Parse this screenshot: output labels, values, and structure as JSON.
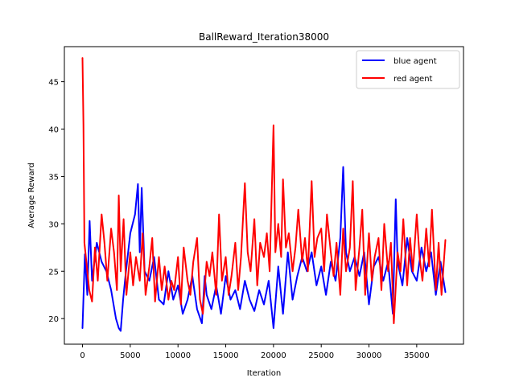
{
  "chart_data": {
    "type": "line",
    "title": "BallReward_Iteration38000",
    "xlabel": "Iteration",
    "ylabel": "Average Reward",
    "xlim": [
      -1900,
      39900
    ],
    "ylim": [
      17.3,
      48.7
    ],
    "xticks": [
      0,
      5000,
      10000,
      15000,
      20000,
      25000,
      30000,
      35000
    ],
    "yticks": [
      20,
      25,
      30,
      35,
      40,
      45
    ],
    "grid": false,
    "legend_position": "top-right",
    "series": [
      {
        "name": "blue agent",
        "color": "#0000ff",
        "x": [
          0,
          250,
          500,
          750,
          1000,
          1500,
          2000,
          2500,
          3000,
          3500,
          3800,
          4000,
          4250,
          4500,
          5000,
          5500,
          5800,
          6000,
          6200,
          6500,
          7000,
          7500,
          8000,
          8500,
          9000,
          9500,
          10000,
          10500,
          11000,
          11500,
          12000,
          12500,
          12800,
          13000,
          13500,
          14000,
          14500,
          15000,
          15500,
          16000,
          16500,
          17000,
          17500,
          18000,
          18500,
          19000,
          19500,
          20000,
          20500,
          21000,
          21500,
          22000,
          22500,
          23000,
          23500,
          24000,
          24500,
          25000,
          25500,
          26000,
          26500,
          27000,
          27300,
          27600,
          28000,
          28500,
          29000,
          29500,
          30000,
          30500,
          31000,
          31500,
          32000,
          32500,
          32800,
          33000,
          33500,
          34000,
          34500,
          35000,
          35500,
          36000,
          36500,
          37000,
          37500,
          38000
        ],
        "y": [
          19,
          26.8,
          22.5,
          30.3,
          24,
          28,
          26,
          25,
          23,
          20,
          19,
          18.7,
          22,
          24.5,
          29,
          31,
          34.2,
          27,
          33.8,
          25,
          24,
          26.5,
          22,
          21.5,
          25,
          22,
          23.5,
          20.5,
          22,
          24.5,
          21,
          19.5,
          24.5,
          22.5,
          21,
          23.5,
          20.5,
          24.5,
          22,
          23,
          21,
          24,
          22,
          20.8,
          23,
          21.5,
          24,
          19,
          25.5,
          20.5,
          27,
          22,
          24.5,
          26.5,
          25,
          27,
          23.5,
          25.5,
          22.5,
          26,
          24,
          28.5,
          36,
          27,
          25,
          26.5,
          24.5,
          27,
          21.5,
          25.5,
          26.5,
          24,
          26,
          20.5,
          32.6,
          26,
          23.5,
          28.5,
          25,
          24,
          27.5,
          25,
          27,
          22.5,
          26,
          22.8
        ]
      },
      {
        "name": "red agent",
        "color": "#ff0000",
        "x": [
          0,
          100,
          200,
          400,
          700,
          1000,
          1300,
          1600,
          2000,
          2300,
          2600,
          3000,
          3300,
          3600,
          3800,
          4000,
          4300,
          4600,
          5000,
          5300,
          5600,
          6000,
          6300,
          6600,
          7000,
          7300,
          7600,
          8000,
          8300,
          8600,
          9000,
          9300,
          9600,
          10000,
          10300,
          10600,
          11000,
          11300,
          11600,
          12000,
          12300,
          12600,
          13000,
          13300,
          13600,
          14000,
          14300,
          14600,
          15000,
          15300,
          15600,
          16000,
          16300,
          16600,
          17000,
          17300,
          17600,
          18000,
          18300,
          18600,
          19000,
          19300,
          19600,
          20000,
          20200,
          20500,
          20800,
          21000,
          21300,
          21600,
          22000,
          22300,
          22600,
          23000,
          23300,
          23600,
          24000,
          24300,
          24600,
          25000,
          25300,
          25600,
          26000,
          26300,
          26600,
          27000,
          27300,
          27600,
          28000,
          28300,
          28600,
          29000,
          29300,
          29600,
          30000,
          30300,
          30600,
          31000,
          31300,
          31600,
          32000,
          32300,
          32600,
          33000,
          33300,
          33600,
          34000,
          34300,
          34600,
          35000,
          35300,
          35600,
          36000,
          36300,
          36600,
          37000,
          37300,
          37600,
          38000
        ],
        "y": [
          47.5,
          40.5,
          28,
          26,
          23,
          21.8,
          27.5,
          24,
          31,
          28,
          24,
          29.5,
          27,
          23,
          33,
          25,
          30.5,
          22.5,
          27,
          23.5,
          26.5,
          24,
          29,
          22.5,
          25.5,
          28.5,
          21.8,
          26.5,
          23,
          25.5,
          22,
          24,
          23,
          26.5,
          21.5,
          27.5,
          24,
          22.5,
          26,
          28.5,
          22,
          20.5,
          26,
          24.5,
          27,
          22.5,
          31,
          24,
          26.5,
          22.5,
          24.5,
          28,
          23,
          26.5,
          34.3,
          27,
          25,
          30.5,
          23.5,
          28,
          26.5,
          29,
          25,
          40.4,
          27,
          30,
          26.5,
          34.7,
          27.5,
          29,
          25,
          27.5,
          31.5,
          26,
          28.5,
          25,
          34.5,
          26.5,
          28.5,
          29.5,
          25,
          31,
          27,
          24.5,
          28,
          22.5,
          29.5,
          25,
          27.5,
          34.5,
          23,
          27.5,
          31.5,
          22.5,
          29,
          24,
          26.5,
          28.5,
          23,
          30,
          25,
          28,
          19.5,
          27,
          25,
          30.5,
          23.5,
          28.5,
          25,
          31,
          26.5,
          24,
          29.5,
          25.5,
          31.5,
          23,
          28,
          22.5,
          28.3
        ]
      }
    ]
  }
}
